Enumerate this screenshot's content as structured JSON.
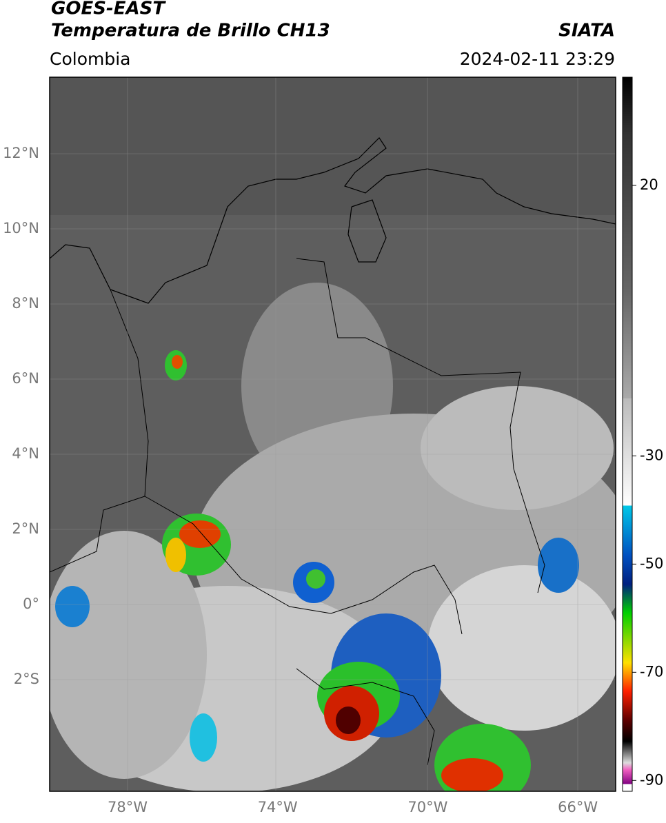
{
  "header": {
    "title_line1": "GOES-EAST",
    "title_line2": "Temperatura de Brillo CH13",
    "source": "SIATA",
    "region": "Colombia",
    "datetime": "2024-02-11 23:29"
  },
  "map": {
    "lon_ticks": [
      "78°W",
      "74°W",
      "70°W",
      "66°W"
    ],
    "lat_ticks": [
      "12°N",
      "10°N",
      "8°N",
      "6°N",
      "4°N",
      "2°N",
      "0°",
      "2°S"
    ]
  },
  "colorbar": {
    "range": [
      -92,
      40
    ],
    "ticks": [
      20,
      -30,
      -50,
      -70,
      -90
    ]
  }
}
